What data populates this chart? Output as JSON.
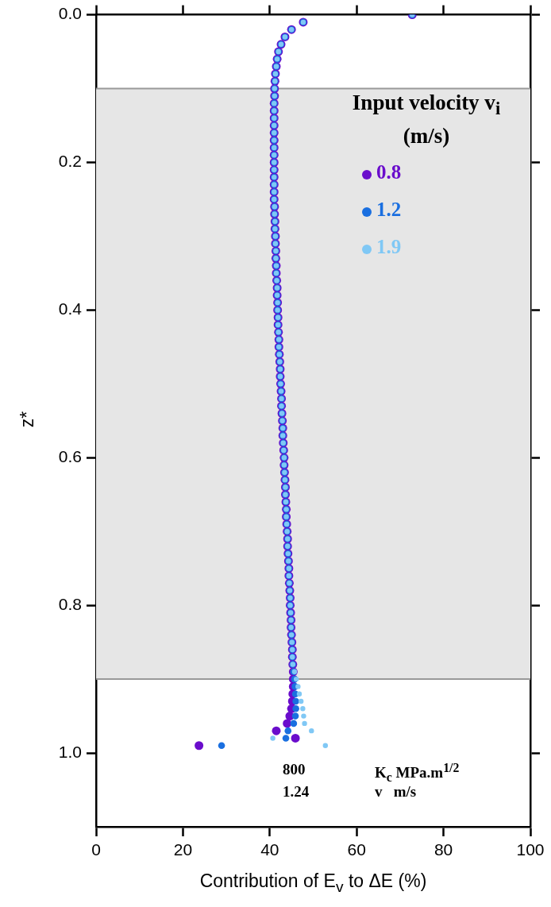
{
  "chart_data": {
    "type": "scatter",
    "xlabel": "Contribution of E$_{v}$ to ΔE (%)",
    "ylabel": "z*",
    "legend_title": "Input velocity v$_{i}$ (m/s)",
    "legend": "top right",
    "marker": "circle",
    "grid": false,
    "xlim": [
      0,
      100
    ],
    "xticks": [
      0,
      20,
      40,
      60,
      80,
      100
    ],
    "ylim": [
      1.1,
      0
    ],
    "yticks": [
      {
        "value": 0,
        "label": "0.0"
      },
      {
        "value": 0.2,
        "label": "0.2"
      },
      {
        "value": 0.4,
        "label": "0.4"
      },
      {
        "value": 0.6,
        "label": "0.6"
      },
      {
        "value": 0.8,
        "label": "0.8"
      },
      {
        "value": 1,
        "label": "1.0"
      }
    ],
    "bands": [
      {
        "axis": "y",
        "from": 0.1,
        "to": 0.9,
        "color": "#e6e6e6"
      }
    ],
    "ref_lines": [
      {
        "axis": "y",
        "value": 0.1,
        "color": "#999999"
      },
      {
        "axis": "y",
        "value": 0.9,
        "color": "#999999"
      }
    ],
    "annotations": [
      "800",
      "1.24",
      "K$_{c}$ MPa.m$^{1/2}$",
      "v   m/s"
    ],
    "series": [
      {
        "name": "0.8",
        "color": "#6a0dcc",
        "x": [
          72.8,
          47.7,
          45.0,
          43.5,
          42.6,
          42.0,
          41.7,
          41.5,
          41.3,
          41.2,
          41.1,
          41.1,
          41.0,
          41.0,
          41.0,
          41.0,
          41.0,
          41.0,
          41.0,
          41.0,
          41.0,
          41.0,
          41.0,
          41.0,
          41.0,
          41.0,
          41.1,
          41.1,
          41.2,
          41.2,
          41.3,
          41.3,
          41.4,
          41.4,
          41.5,
          41.5,
          41.6,
          41.7,
          41.7,
          41.8,
          41.8,
          41.9,
          41.9,
          42.0,
          42.1,
          42.1,
          42.2,
          42.3,
          42.4,
          42.4,
          42.5,
          42.6,
          42.7,
          42.7,
          42.8,
          42.9,
          43.0,
          43.0,
          43.1,
          43.2,
          43.3,
          43.3,
          43.4,
          43.5,
          43.6,
          43.6,
          43.7,
          43.8,
          43.8,
          43.9,
          44.0,
          44.1,
          44.1,
          44.2,
          44.3,
          44.4,
          44.4,
          44.5,
          44.6,
          44.7,
          44.7,
          44.8,
          44.9,
          44.9,
          45.0,
          45.1,
          45.2,
          45.2,
          45.3,
          45.4,
          45.4,
          45.4,
          45.3,
          45.2,
          45.0,
          44.6,
          44.0,
          41.5,
          45.9,
          23.7
        ],
        "values": [
          0,
          0.01,
          0.02,
          0.03,
          0.04,
          0.05,
          0.06,
          0.07,
          0.08,
          0.09,
          0.1,
          0.11,
          0.12,
          0.13,
          0.14,
          0.15,
          0.16,
          0.17,
          0.18,
          0.19,
          0.2,
          0.21,
          0.22,
          0.23,
          0.24,
          0.25,
          0.26,
          0.27,
          0.28,
          0.29,
          0.3,
          0.31,
          0.32,
          0.33,
          0.34,
          0.35,
          0.36,
          0.37,
          0.38,
          0.39,
          0.4,
          0.41,
          0.42,
          0.43,
          0.44,
          0.45,
          0.46,
          0.47,
          0.48,
          0.49,
          0.5,
          0.51,
          0.52,
          0.53,
          0.54,
          0.55,
          0.56,
          0.57,
          0.58,
          0.59,
          0.6,
          0.61,
          0.62,
          0.63,
          0.64,
          0.65,
          0.66,
          0.67,
          0.68,
          0.69,
          0.7,
          0.71,
          0.72,
          0.73,
          0.74,
          0.75,
          0.76,
          0.77,
          0.78,
          0.79,
          0.8,
          0.81,
          0.82,
          0.83,
          0.84,
          0.85,
          0.86,
          0.87,
          0.88,
          0.89,
          0.9,
          0.91,
          0.92,
          0.93,
          0.94,
          0.95,
          0.96,
          0.97,
          0.98,
          0.99
        ]
      },
      {
        "name": "1.2",
        "color": "#1a6fe0",
        "x": [
          72.8,
          47.7,
          45.0,
          43.5,
          42.6,
          42.0,
          41.7,
          41.5,
          41.3,
          41.2,
          41.1,
          41.1,
          41.0,
          41.0,
          41.0,
          41.0,
          41.0,
          41.0,
          41.0,
          41.0,
          41.0,
          41.0,
          41.0,
          41.0,
          41.0,
          41.0,
          41.1,
          41.1,
          41.2,
          41.2,
          41.3,
          41.3,
          41.4,
          41.4,
          41.5,
          41.5,
          41.6,
          41.7,
          41.7,
          41.8,
          41.8,
          41.9,
          41.9,
          42.0,
          42.1,
          42.1,
          42.2,
          42.3,
          42.4,
          42.4,
          42.5,
          42.6,
          42.7,
          42.7,
          42.8,
          42.9,
          43.0,
          43.0,
          43.1,
          43.2,
          43.3,
          43.3,
          43.4,
          43.5,
          43.6,
          43.6,
          43.7,
          43.8,
          43.8,
          43.9,
          44.0,
          44.1,
          44.1,
          44.2,
          44.3,
          44.4,
          44.4,
          44.5,
          44.6,
          44.7,
          44.7,
          44.8,
          44.9,
          44.9,
          45.0,
          45.1,
          45.2,
          45.2,
          45.3,
          45.5,
          45.7,
          45.8,
          45.9,
          46.0,
          46.0,
          45.9,
          45.5,
          44.2,
          43.7,
          28.9
        ],
        "values": [
          0,
          0.01,
          0.02,
          0.03,
          0.04,
          0.05,
          0.06,
          0.07,
          0.08,
          0.09,
          0.1,
          0.11,
          0.12,
          0.13,
          0.14,
          0.15,
          0.16,
          0.17,
          0.18,
          0.19,
          0.2,
          0.21,
          0.22,
          0.23,
          0.24,
          0.25,
          0.26,
          0.27,
          0.28,
          0.29,
          0.3,
          0.31,
          0.32,
          0.33,
          0.34,
          0.35,
          0.36,
          0.37,
          0.38,
          0.39,
          0.4,
          0.41,
          0.42,
          0.43,
          0.44,
          0.45,
          0.46,
          0.47,
          0.48,
          0.49,
          0.5,
          0.51,
          0.52,
          0.53,
          0.54,
          0.55,
          0.56,
          0.57,
          0.58,
          0.59,
          0.6,
          0.61,
          0.62,
          0.63,
          0.64,
          0.65,
          0.66,
          0.67,
          0.68,
          0.69,
          0.7,
          0.71,
          0.72,
          0.73,
          0.74,
          0.75,
          0.76,
          0.77,
          0.78,
          0.79,
          0.8,
          0.81,
          0.82,
          0.83,
          0.84,
          0.85,
          0.86,
          0.87,
          0.88,
          0.89,
          0.9,
          0.91,
          0.92,
          0.93,
          0.94,
          0.95,
          0.96,
          0.97,
          0.98,
          0.99
        ]
      },
      {
        "name": "1.9",
        "color": "#80c8f5",
        "x": [
          72.8,
          47.7,
          45.0,
          43.5,
          42.6,
          42.0,
          41.7,
          41.5,
          41.3,
          41.2,
          41.1,
          41.1,
          41.0,
          41.0,
          41.0,
          41.0,
          41.0,
          41.0,
          41.0,
          41.0,
          41.0,
          41.0,
          41.0,
          41.0,
          41.0,
          41.0,
          41.1,
          41.1,
          41.2,
          41.2,
          41.3,
          41.3,
          41.4,
          41.4,
          41.5,
          41.5,
          41.6,
          41.7,
          41.7,
          41.8,
          41.8,
          41.9,
          41.9,
          42.0,
          42.1,
          42.1,
          42.2,
          42.3,
          42.4,
          42.4,
          42.5,
          42.6,
          42.7,
          42.7,
          42.8,
          42.9,
          43.0,
          43.0,
          43.1,
          43.2,
          43.3,
          43.3,
          43.4,
          43.5,
          43.6,
          43.6,
          43.7,
          43.8,
          43.8,
          43.9,
          44.0,
          44.1,
          44.1,
          44.2,
          44.3,
          44.4,
          44.4,
          44.5,
          44.6,
          44.7,
          44.7,
          44.8,
          44.9,
          44.9,
          45.0,
          45.1,
          45.2,
          45.2,
          45.3,
          45.7,
          46.1,
          46.5,
          46.8,
          47.2,
          47.6,
          47.8,
          48.0,
          49.6,
          40.7,
          52.8
        ],
        "values": [
          0,
          0.01,
          0.02,
          0.03,
          0.04,
          0.05,
          0.06,
          0.07,
          0.08,
          0.09,
          0.1,
          0.11,
          0.12,
          0.13,
          0.14,
          0.15,
          0.16,
          0.17,
          0.18,
          0.19,
          0.2,
          0.21,
          0.22,
          0.23,
          0.24,
          0.25,
          0.26,
          0.27,
          0.28,
          0.29,
          0.3,
          0.31,
          0.32,
          0.33,
          0.34,
          0.35,
          0.36,
          0.37,
          0.38,
          0.39,
          0.4,
          0.41,
          0.42,
          0.43,
          0.44,
          0.45,
          0.46,
          0.47,
          0.48,
          0.49,
          0.5,
          0.51,
          0.52,
          0.53,
          0.54,
          0.55,
          0.56,
          0.57,
          0.58,
          0.59,
          0.6,
          0.61,
          0.62,
          0.63,
          0.64,
          0.65,
          0.66,
          0.67,
          0.68,
          0.69,
          0.7,
          0.71,
          0.72,
          0.73,
          0.74,
          0.75,
          0.76,
          0.77,
          0.78,
          0.79,
          0.8,
          0.81,
          0.82,
          0.83,
          0.84,
          0.85,
          0.86,
          0.87,
          0.88,
          0.89,
          0.9,
          0.91,
          0.92,
          0.93,
          0.94,
          0.95,
          0.96,
          0.97,
          0.98,
          0.99
        ]
      }
    ]
  }
}
